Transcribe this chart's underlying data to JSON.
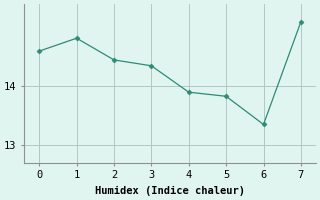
{
  "x": [
    0,
    1,
    2,
    3,
    4,
    5,
    6,
    7
  ],
  "y": [
    14.6,
    14.82,
    14.45,
    14.35,
    13.9,
    13.83,
    13.35,
    15.1
  ],
  "line_color": "#2e8b74",
  "marker": "D",
  "marker_size": 2.5,
  "bg_color": "#e0f5f0",
  "grid_color": "#b0c8c0",
  "xlabel": "Humidex (Indice chaleur)",
  "ylim": [
    12.7,
    15.4
  ],
  "xlim": [
    -0.4,
    7.4
  ],
  "yticks": [
    13,
    14
  ],
  "xticks": [
    0,
    1,
    2,
    3,
    4,
    5,
    6,
    7
  ],
  "xlabel_fontsize": 7.5,
  "tick_fontsize": 7.5,
  "linewidth": 0.9
}
